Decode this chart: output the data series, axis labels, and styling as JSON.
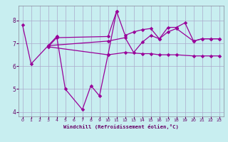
{
  "bg_color": "#c8eef0",
  "line_color": "#990099",
  "grid_color": "#aaaacc",
  "tick_color": "#660066",
  "xlabel": "Windchill (Refroidissement éolien,°C)",
  "xlim": [
    -0.5,
    23.5
  ],
  "ylim": [
    3.8,
    8.65
  ],
  "yticks": [
    4,
    5,
    6,
    7,
    8
  ],
  "xticks": [
    0,
    1,
    2,
    3,
    4,
    5,
    6,
    7,
    8,
    9,
    10,
    11,
    12,
    13,
    14,
    15,
    16,
    17,
    18,
    19,
    20,
    21,
    22,
    23
  ],
  "line1_x": [
    0,
    1,
    4,
    5,
    7,
    8,
    9,
    10,
    11
  ],
  "line1_y": [
    7.8,
    6.1,
    7.3,
    5.0,
    4.1,
    5.15,
    4.7,
    6.5,
    8.4
  ],
  "line2_x": [
    3,
    10,
    12,
    14,
    15,
    16,
    17,
    18,
    20,
    21,
    22,
    23
  ],
  "line2_y": [
    6.85,
    6.5,
    6.6,
    6.55,
    6.55,
    6.5,
    6.5,
    6.5,
    6.45,
    6.45,
    6.45,
    6.45
  ],
  "line3_x": [
    3,
    10,
    12,
    13,
    14,
    15,
    16,
    17,
    18,
    20,
    21,
    22,
    23
  ],
  "line3_y": [
    6.9,
    7.1,
    7.25,
    6.6,
    7.05,
    7.35,
    7.2,
    7.5,
    7.65,
    7.1,
    7.2,
    7.2,
    7.2
  ],
  "line4_x": [
    3,
    4,
    10,
    11,
    12,
    13,
    14,
    15,
    16,
    17,
    18,
    19,
    20,
    21,
    22,
    23
  ],
  "line4_y": [
    6.85,
    7.25,
    7.3,
    8.4,
    7.35,
    7.5,
    7.6,
    7.65,
    7.2,
    7.7,
    7.7,
    7.9,
    7.1,
    7.2,
    7.2,
    7.2
  ]
}
